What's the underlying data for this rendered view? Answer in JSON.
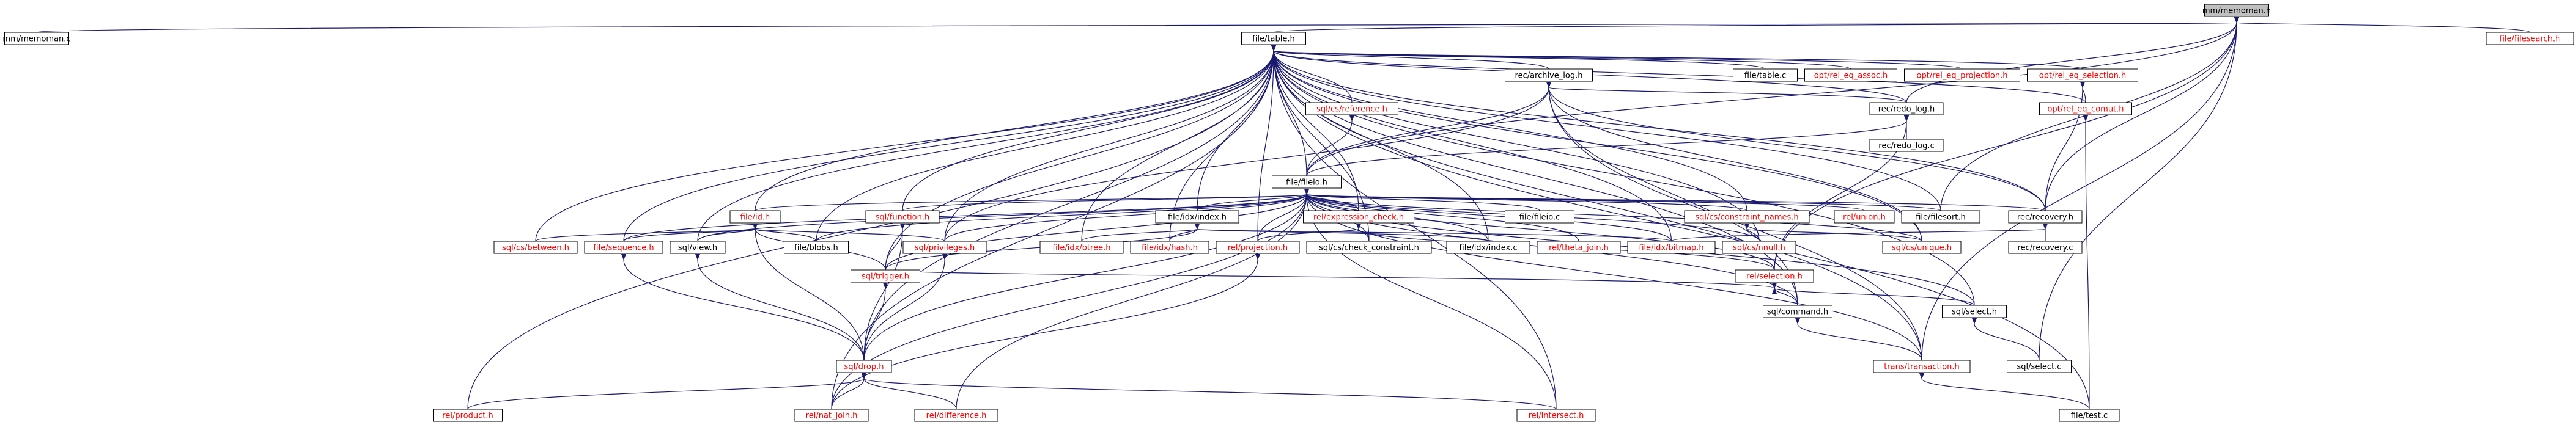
{
  "colors": {
    "root_fill": "#bfbfbf",
    "node_fill": "#ffffff",
    "linked_text": "#000000",
    "missing_text": "#ff0000",
    "edge": "#191970"
  },
  "root": "mm/memoman.h",
  "nodes": [
    {
      "id": "mm/memoman.h",
      "missing": false
    },
    {
      "id": "mm/memoman.c",
      "missing": false
    },
    {
      "id": "file/table.h",
      "missing": false
    },
    {
      "id": "file/filesearch.h",
      "missing": true
    },
    {
      "id": "rec/archive_log.h",
      "missing": false
    },
    {
      "id": "file/table.c",
      "missing": false
    },
    {
      "id": "opt/rel_eq_assoc.h",
      "missing": true
    },
    {
      "id": "opt/rel_eq_projection.h",
      "missing": true
    },
    {
      "id": "opt/rel_eq_selection.h",
      "missing": true
    },
    {
      "id": "sql/cs/reference.h",
      "missing": true
    },
    {
      "id": "rec/redo_log.h",
      "missing": false
    },
    {
      "id": "opt/rel_eq_comut.h",
      "missing": true
    },
    {
      "id": "rec/redo_log.c",
      "missing": false
    },
    {
      "id": "file/fileio.h",
      "missing": false
    },
    {
      "id": "file/id.h",
      "missing": true
    },
    {
      "id": "sql/function.h",
      "missing": true
    },
    {
      "id": "file/idx/index.h",
      "missing": false
    },
    {
      "id": "rel/expression_check.h",
      "missing": true
    },
    {
      "id": "file/fileio.c",
      "missing": false
    },
    {
      "id": "sql/cs/constraint_names.h",
      "missing": true
    },
    {
      "id": "rel/union.h",
      "missing": true
    },
    {
      "id": "file/filesort.h",
      "missing": false
    },
    {
      "id": "rec/recovery.h",
      "missing": false
    },
    {
      "id": "sql/cs/between.h",
      "missing": true
    },
    {
      "id": "file/sequence.h",
      "missing": true
    },
    {
      "id": "sql/view.h",
      "missing": false
    },
    {
      "id": "file/blobs.h",
      "missing": false
    },
    {
      "id": "sql/privileges.h",
      "missing": true
    },
    {
      "id": "file/idx/btree.h",
      "missing": true
    },
    {
      "id": "file/idx/hash.h",
      "missing": true
    },
    {
      "id": "rel/projection.h",
      "missing": true
    },
    {
      "id": "sql/cs/check_constraint.h",
      "missing": false
    },
    {
      "id": "file/idx/index.c",
      "missing": false
    },
    {
      "id": "rel/theta_join.h",
      "missing": true
    },
    {
      "id": "file/idx/bitmap.h",
      "missing": true
    },
    {
      "id": "sql/cs/nnull.h",
      "missing": true
    },
    {
      "id": "rel/selection.h",
      "missing": true
    },
    {
      "id": "sql/cs/unique.h",
      "missing": true
    },
    {
      "id": "rec/recovery.c",
      "missing": false
    },
    {
      "id": "sql/trigger.h",
      "missing": true
    },
    {
      "id": "sql/command.h",
      "missing": false
    },
    {
      "id": "sql/select.h",
      "missing": false
    },
    {
      "id": "sql/drop.h",
      "missing": true
    },
    {
      "id": "trans/transaction.h",
      "missing": true
    },
    {
      "id": "sql/select.c",
      "missing": false
    },
    {
      "id": "rel/product.h",
      "missing": true
    },
    {
      "id": "rel/nat_join.h",
      "missing": true
    },
    {
      "id": "rel/difference.h",
      "missing": true
    },
    {
      "id": "rel/intersect.h",
      "missing": true
    },
    {
      "id": "file/test.c",
      "missing": false
    }
  ],
  "edges": [
    [
      "mm/memoman.h",
      "mm/memoman.c"
    ],
    [
      "mm/memoman.h",
      "file/table.h"
    ],
    [
      "mm/memoman.h",
      "file/filesearch.h"
    ],
    [
      "mm/memoman.h",
      "rec/redo_log.h"
    ],
    [
      "mm/memoman.h",
      "file/fileio.h"
    ],
    [
      "mm/memoman.h",
      "rec/recovery.h"
    ],
    [
      "mm/memoman.h",
      "file/filesort.h"
    ],
    [
      "mm/memoman.h",
      "rel/selection.h"
    ],
    [
      "mm/memoman.h",
      "sql/select.c"
    ],
    [
      "mm/memoman.h",
      "trans/transaction.h"
    ],
    [
      "file/table.h",
      "rec/archive_log.h"
    ],
    [
      "file/table.h",
      "file/table.c"
    ],
    [
      "file/table.h",
      "opt/rel_eq_assoc.h"
    ],
    [
      "file/table.h",
      "opt/rel_eq_projection.h"
    ],
    [
      "file/table.h",
      "opt/rel_eq_selection.h"
    ],
    [
      "file/table.h",
      "sql/cs/reference.h"
    ],
    [
      "file/table.h",
      "rec/redo_log.h"
    ],
    [
      "file/table.h",
      "opt/rel_eq_comut.h"
    ],
    [
      "file/table.h",
      "file/fileio.h"
    ],
    [
      "file/table.h",
      "file/id.h"
    ],
    [
      "file/table.h",
      "sql/function.h"
    ],
    [
      "file/table.h",
      "file/idx/index.h"
    ],
    [
      "file/table.h",
      "rel/expression_check.h"
    ],
    [
      "file/table.h",
      "sql/cs/constraint_names.h"
    ],
    [
      "file/table.h",
      "file/filesort.h"
    ],
    [
      "file/table.h",
      "rec/recovery.h"
    ],
    [
      "file/table.h",
      "sql/cs/between.h"
    ],
    [
      "file/table.h",
      "file/sequence.h"
    ],
    [
      "file/table.h",
      "sql/view.h"
    ],
    [
      "file/table.h",
      "file/blobs.h"
    ],
    [
      "file/table.h",
      "sql/privileges.h"
    ],
    [
      "file/table.h",
      "file/idx/btree.h"
    ],
    [
      "file/table.h",
      "file/idx/hash.h"
    ],
    [
      "file/table.h",
      "rel/projection.h"
    ],
    [
      "file/table.h",
      "sql/cs/check_constraint.h"
    ],
    [
      "file/table.h",
      "file/idx/index.c"
    ],
    [
      "file/table.h",
      "file/idx/bitmap.h"
    ],
    [
      "file/table.h",
      "sql/cs/nnull.h"
    ],
    [
      "file/table.h",
      "sql/cs/unique.h"
    ],
    [
      "file/table.h",
      "sql/trigger.h"
    ],
    [
      "file/table.h",
      "sql/command.h"
    ],
    [
      "file/table.h",
      "sql/select.h"
    ],
    [
      "file/table.h",
      "sql/drop.h"
    ],
    [
      "file/table.h",
      "trans/transaction.h"
    ],
    [
      "file/table.h",
      "rel/product.h"
    ],
    [
      "file/table.h",
      "rel/nat_join.h"
    ],
    [
      "file/table.h",
      "rel/intersect.h"
    ],
    [
      "file/table.h",
      "file/test.c"
    ],
    [
      "rec/archive_log.h",
      "rec/redo_log.h"
    ],
    [
      "rec/archive_log.h",
      "file/fileio.h"
    ],
    [
      "rec/archive_log.h",
      "sql/privileges.h"
    ],
    [
      "rec/archive_log.h",
      "rec/recovery.h"
    ],
    [
      "rec/archive_log.h",
      "sql/command.h"
    ],
    [
      "rec/archive_log.h",
      "trans/transaction.h"
    ],
    [
      "rec/archive_log.h",
      "sql/cs/unique.h"
    ],
    [
      "opt/rel_eq_selection.h",
      "opt/rel_eq_comut.h"
    ],
    [
      "opt/rel_eq_selection.h",
      "rec/recovery.h"
    ],
    [
      "opt/rel_eq_comut.h",
      "file/test.c"
    ],
    [
      "sql/cs/reference.h",
      "file/fileio.h"
    ],
    [
      "rec/redo_log.h",
      "rec/redo_log.c"
    ],
    [
      "rec/redo_log.h",
      "file/fileio.h"
    ],
    [
      "rec/redo_log.h",
      "rel/selection.h"
    ],
    [
      "file/fileio.h",
      "file/id.h"
    ],
    [
      "file/fileio.h",
      "sql/function.h"
    ],
    [
      "file/fileio.h",
      "file/idx/index.h"
    ],
    [
      "file/fileio.h",
      "rel/expression_check.h"
    ],
    [
      "file/fileio.h",
      "file/fileio.c"
    ],
    [
      "file/fileio.h",
      "sql/cs/constraint_names.h"
    ],
    [
      "file/fileio.h",
      "rel/union.h"
    ],
    [
      "file/fileio.h",
      "file/filesort.h"
    ],
    [
      "file/fileio.h",
      "rec/recovery.h"
    ],
    [
      "file/fileio.h",
      "file/sequence.h"
    ],
    [
      "file/fileio.h",
      "sql/view.h"
    ],
    [
      "file/fileio.h",
      "file/blobs.h"
    ],
    [
      "file/fileio.h",
      "sql/privileges.h"
    ],
    [
      "file/fileio.h",
      "rel/projection.h"
    ],
    [
      "file/fileio.h",
      "sql/cs/check_constraint.h"
    ],
    [
      "file/fileio.h",
      "file/idx/index.c"
    ],
    [
      "file/fileio.h",
      "rel/theta_join.h"
    ],
    [
      "file/fileio.h",
      "file/idx/bitmap.h"
    ],
    [
      "file/fileio.h",
      "sql/cs/nnull.h"
    ],
    [
      "file/fileio.h",
      "rel/selection.h"
    ],
    [
      "file/fileio.h",
      "sql/cs/unique.h"
    ],
    [
      "file/fileio.h",
      "sql/trigger.h"
    ],
    [
      "file/fileio.h",
      "sql/command.h"
    ],
    [
      "file/fileio.h",
      "sql/select.h"
    ],
    [
      "file/fileio.h",
      "sql/drop.h"
    ],
    [
      "file/fileio.h",
      "trans/transaction.h"
    ],
    [
      "file/fileio.h",
      "rel/nat_join.h"
    ],
    [
      "file/fileio.h",
      "rel/difference.h"
    ],
    [
      "file/fileio.h",
      "rel/intersect.h"
    ],
    [
      "file/id.h",
      "sql/cs/between.h"
    ],
    [
      "file/id.h",
      "file/sequence.h"
    ],
    [
      "file/id.h",
      "sql/view.h"
    ],
    [
      "file/id.h",
      "file/blobs.h"
    ],
    [
      "file/id.h",
      "sql/privileges.h"
    ],
    [
      "file/id.h",
      "sql/trigger.h"
    ],
    [
      "file/id.h",
      "sql/drop.h"
    ],
    [
      "sql/function.h",
      "sql/trigger.h"
    ],
    [
      "sql/function.h",
      "sql/drop.h"
    ],
    [
      "file/idx/index.h",
      "file/idx/btree.h"
    ],
    [
      "file/idx/index.h",
      "file/idx/hash.h"
    ],
    [
      "file/idx/index.h",
      "file/idx/index.c"
    ],
    [
      "file/idx/index.h",
      "file/idx/bitmap.h"
    ],
    [
      "file/idx/index.h",
      "sql/trigger.h"
    ],
    [
      "rel/expression_check.h",
      "rel/projection.h"
    ],
    [
      "rel/expression_check.h",
      "sql/cs/check_constraint.h"
    ],
    [
      "rel/expression_check.h",
      "rel/selection.h"
    ],
    [
      "sql/cs/constraint_names.h",
      "sql/cs/nnull.h"
    ],
    [
      "sql/cs/constraint_names.h",
      "sql/cs/unique.h"
    ],
    [
      "rec/recovery.h",
      "rec/recovery.c"
    ],
    [
      "rec/recovery.h",
      "file/idx/bitmap.h"
    ],
    [
      "file/sequence.h",
      "sql/drop.h"
    ],
    [
      "sql/view.h",
      "sql/drop.h"
    ],
    [
      "sql/privileges.h",
      "sql/drop.h"
    ],
    [
      "rel/projection.h",
      "rel/nat_join.h"
    ],
    [
      "rel/selection.h",
      "sql/command.h"
    ],
    [
      "rel/selection.h",
      "sql/select.h"
    ],
    [
      "rel/selection.h",
      "sql/trigger.h"
    ],
    [
      "sql/trigger.h",
      "sql/drop.h"
    ],
    [
      "sql/command.h",
      "trans/transaction.h"
    ],
    [
      "sql/select.h",
      "sql/select.c"
    ],
    [
      "sql/drop.h",
      "rel/product.h"
    ],
    [
      "sql/drop.h",
      "rel/nat_join.h"
    ],
    [
      "sql/drop.h",
      "rel/difference.h"
    ],
    [
      "sql/drop.h",
      "rel/intersect.h"
    ],
    [
      "trans/transaction.h",
      "file/test.c"
    ]
  ]
}
